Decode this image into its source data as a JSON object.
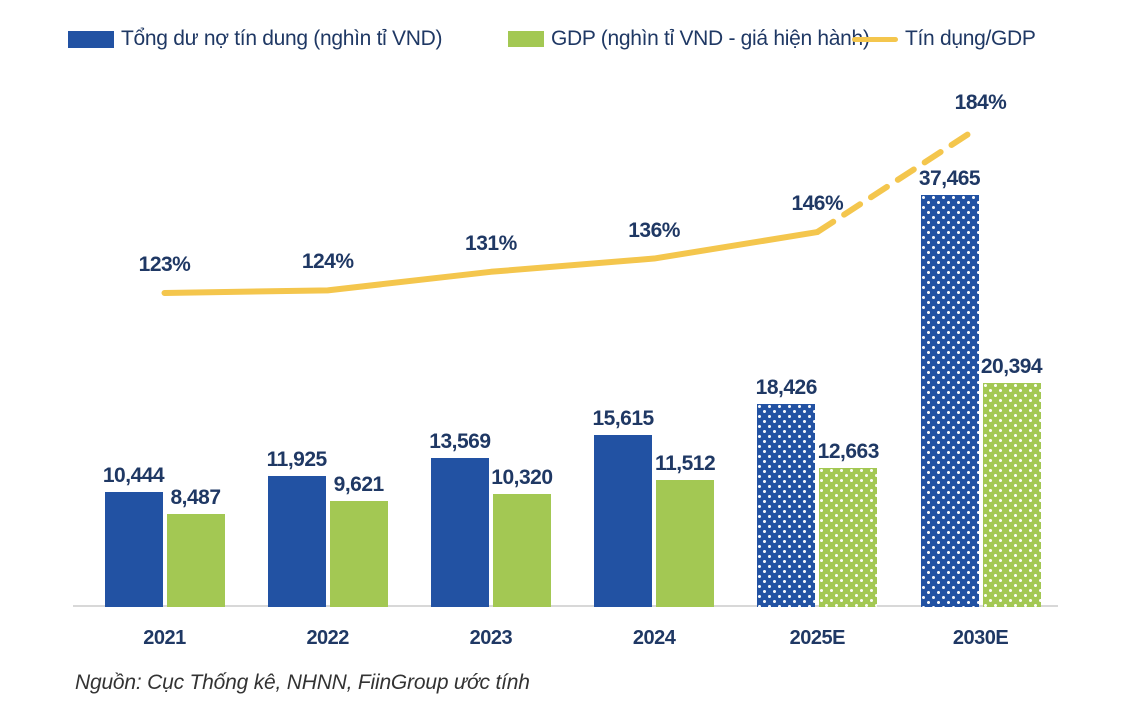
{
  "legend": {
    "items": [
      {
        "label": "Tổng dư nợ tín dung (nghìn tỉ VND)",
        "color": "#2252A3",
        "marker": "square"
      },
      {
        "label": "GDP (nghìn tỉ VND - giá hiện hành)",
        "color": "#A3C853",
        "marker": "square"
      },
      {
        "label": "Tín dụng/GDP",
        "color": "#F4C64D",
        "marker": "line"
      }
    ]
  },
  "source_note": "Nguồn: Cục Thống kê, NHNN, FiinGroup ước tính",
  "colors": {
    "credit_bar": "#2252A3",
    "gdp_bar": "#A3C853",
    "ratio_line": "#F4C64D",
    "label_text": "#1F3864",
    "axis_line": "#D8D8D8",
    "source_text": "#333333"
  },
  "chart_data": {
    "type": "bar",
    "subtype": "grouped-bar-with-line-overlay",
    "categories": [
      "2021",
      "2022",
      "2023",
      "2024",
      "2025E",
      "2030E"
    ],
    "series": [
      {
        "name": "Tổng dư nợ tín dung (nghìn tỉ VND)",
        "type": "bar",
        "color": "#2252A3",
        "values": [
          10444,
          11925,
          13569,
          15615,
          18426,
          37465
        ],
        "labels": [
          "10,444",
          "11,925",
          "13,569",
          "15,615",
          "18,426",
          "37,465"
        ]
      },
      {
        "name": "GDP (nghìn tỉ VND - giá hiện hành)",
        "type": "bar",
        "color": "#A3C853",
        "values": [
          8487,
          9621,
          10320,
          11512,
          12663,
          20394
        ],
        "labels": [
          "8,487",
          "9,621",
          "10,320",
          "11,512",
          "12,663",
          "20,394"
        ]
      },
      {
        "name": "Tín dụng/GDP",
        "type": "line",
        "axis": "secondary",
        "unit": "%",
        "color": "#F4C64D",
        "values": [
          123,
          124,
          131,
          136,
          146,
          184
        ],
        "labels": [
          "123%",
          "124%",
          "131%",
          "136%",
          "146%",
          "184%"
        ]
      }
    ],
    "estimate_categories": [
      "2025E",
      "2030E"
    ],
    "estimate_style": "bars get white dotted fill; line segment to 2030E is dashed",
    "ylim": [
      0,
      40000
    ],
    "y2lim_pct": [
      0,
      200
    ],
    "grid": false,
    "legend_position": "top"
  }
}
